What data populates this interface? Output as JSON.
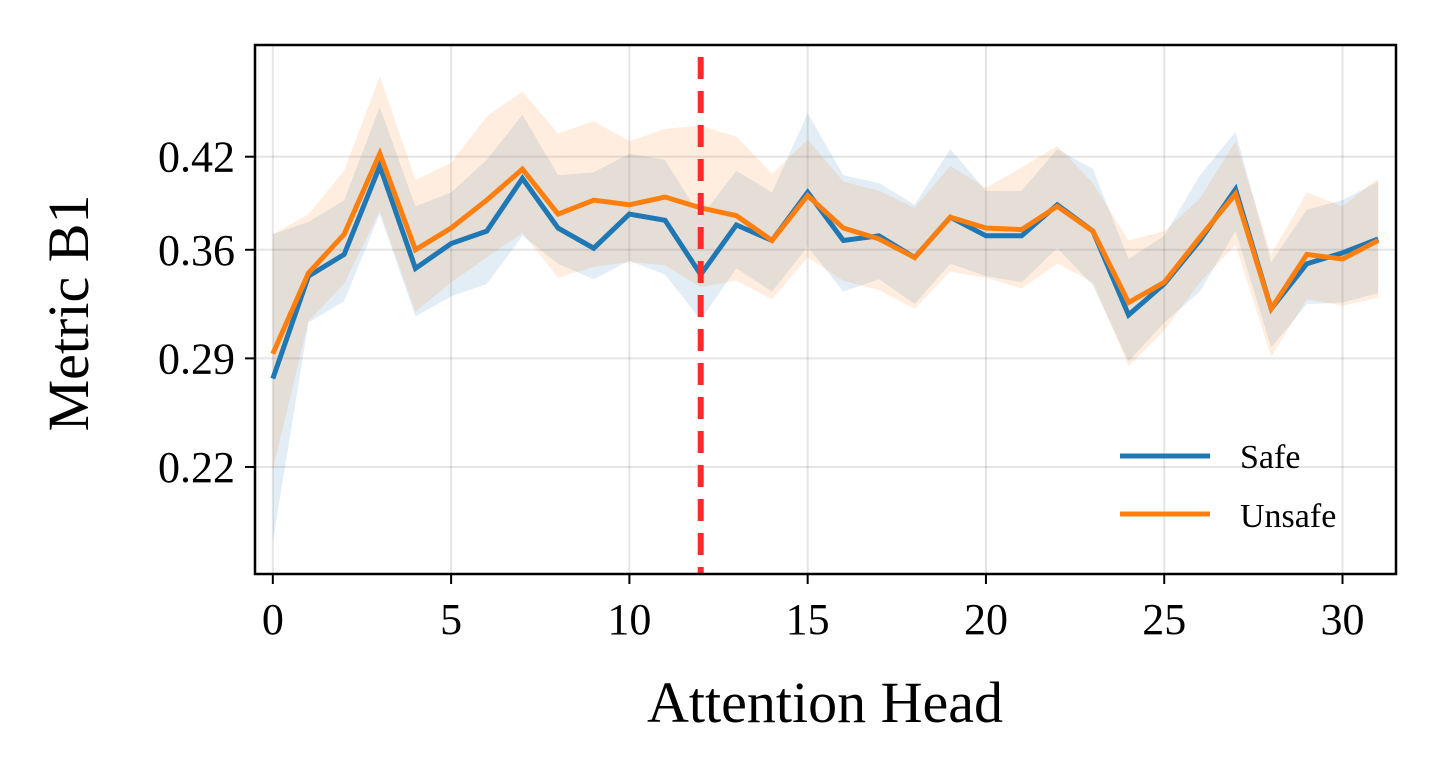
{
  "chart_data": {
    "type": "line",
    "title": "",
    "xlabel": "Attention Head",
    "ylabel": "Metric B1",
    "xlim": [
      -0.5,
      31.5
    ],
    "ylim": [
      0.151,
      0.492
    ],
    "x_ticks": [
      0,
      5,
      10,
      15,
      20,
      25,
      30
    ],
    "x_tick_labels": [
      "0",
      "5",
      "10",
      "15",
      "20",
      "25",
      "30"
    ],
    "y_ticks": [
      0.22,
      0.29,
      0.36,
      0.42
    ],
    "y_tick_labels": [
      "0.22",
      "0.29",
      "0.36",
      "0.42"
    ],
    "grid": true,
    "legend_position": "lower-right",
    "x": [
      0,
      1,
      2,
      3,
      4,
      5,
      6,
      7,
      8,
      9,
      10,
      11,
      12,
      13,
      14,
      15,
      16,
      17,
      18,
      19,
      20,
      21,
      22,
      23,
      24,
      25,
      26,
      27,
      28,
      29,
      30,
      31
    ],
    "series": [
      {
        "name": "Safe",
        "color": "#1f77b4",
        "values": [
          0.277,
          0.343,
          0.357,
          0.414,
          0.348,
          0.364,
          0.372,
          0.406,
          0.374,
          0.361,
          0.383,
          0.379,
          0.344,
          0.376,
          0.366,
          0.397,
          0.366,
          0.369,
          0.355,
          0.381,
          0.369,
          0.369,
          0.389,
          0.372,
          0.318,
          0.338,
          0.366,
          0.399,
          0.322,
          0.351,
          0.358,
          0.367
        ],
        "band_upper": [
          0.37,
          0.378,
          0.392,
          0.452,
          0.388,
          0.397,
          0.418,
          0.447,
          0.408,
          0.41,
          0.422,
          0.418,
          0.381,
          0.411,
          0.397,
          0.448,
          0.408,
          0.403,
          0.389,
          0.425,
          0.398,
          0.398,
          0.425,
          0.412,
          0.354,
          0.369,
          0.408,
          0.436,
          0.352,
          0.386,
          0.392,
          0.404
        ],
        "band_lower": [
          0.172,
          0.313,
          0.327,
          0.383,
          0.317,
          0.33,
          0.338,
          0.369,
          0.351,
          0.341,
          0.353,
          0.344,
          0.315,
          0.348,
          0.333,
          0.362,
          0.333,
          0.341,
          0.325,
          0.351,
          0.343,
          0.339,
          0.361,
          0.337,
          0.288,
          0.313,
          0.333,
          0.372,
          0.297,
          0.325,
          0.326,
          0.332
        ]
      },
      {
        "name": "Unsafe",
        "color": "#ff7f0e",
        "values": [
          0.293,
          0.345,
          0.37,
          0.422,
          0.36,
          0.374,
          0.392,
          0.412,
          0.383,
          0.392,
          0.389,
          0.394,
          0.387,
          0.382,
          0.366,
          0.395,
          0.374,
          0.367,
          0.355,
          0.381,
          0.374,
          0.373,
          0.388,
          0.372,
          0.326,
          0.339,
          0.368,
          0.396,
          0.322,
          0.357,
          0.354,
          0.366
        ],
        "band_upper": [
          0.37,
          0.383,
          0.411,
          0.472,
          0.405,
          0.416,
          0.446,
          0.462,
          0.435,
          0.443,
          0.43,
          0.438,
          0.44,
          0.433,
          0.409,
          0.431,
          0.404,
          0.398,
          0.387,
          0.414,
          0.4,
          0.413,
          0.427,
          0.403,
          0.366,
          0.372,
          0.393,
          0.43,
          0.357,
          0.397,
          0.388,
          0.406
        ],
        "band_lower": [
          0.218,
          0.314,
          0.338,
          0.385,
          0.32,
          0.339,
          0.355,
          0.371,
          0.342,
          0.349,
          0.352,
          0.35,
          0.336,
          0.34,
          0.328,
          0.355,
          0.34,
          0.334,
          0.322,
          0.346,
          0.342,
          0.335,
          0.351,
          0.339,
          0.285,
          0.308,
          0.339,
          0.363,
          0.291,
          0.328,
          0.324,
          0.329
        ]
      }
    ],
    "annotations": [
      {
        "type": "vline",
        "x": 12,
        "color": "#ff2a2a",
        "style": "dashed"
      }
    ]
  }
}
